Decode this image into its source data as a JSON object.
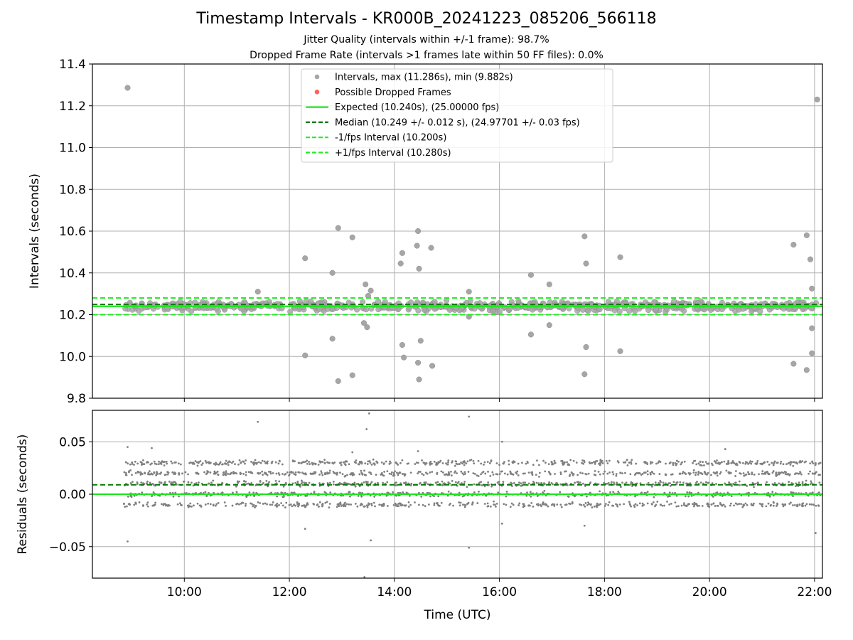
{
  "titles": {
    "main": "Timestamp Intervals - KR000B_20241223_085206_566118",
    "jitter": "Jitter Quality (intervals within +/-1 frame): 98.7%",
    "dropped": "Dropped Frame Rate (intervals >1 frames late within 50 FF files): 0.0%"
  },
  "colors": {
    "points": "#808080",
    "dropped": "#ff0000",
    "expected": "#1de51d",
    "median": "#007b00",
    "interval_bound": "#22ee22",
    "grid": "#b0b0b0"
  },
  "legend": {
    "location": "top-center",
    "entries": [
      {
        "label": "Intervals, max (11.286s), min (9.882s)",
        "style": "marker",
        "color": "#a6a6a6"
      },
      {
        "label": "Possible Dropped Frames",
        "style": "marker",
        "color": "#ff6060"
      },
      {
        "label": "Expected (10.240s), (25.00000 fps)",
        "style": "solid",
        "color": "#1de51d"
      },
      {
        "label": "Median (10.249 +/- 0.012 s), (24.97701 +/- 0.03 fps)",
        "style": "dashed",
        "color": "#007b00"
      },
      {
        "label": "-1/fps Interval (10.200s)",
        "style": "dashed",
        "color": "#22ee22"
      },
      {
        "label": "+1/fps Interval (10.280s)",
        "style": "dashed",
        "color": "#22ee22"
      }
    ]
  },
  "chart_data": [
    {
      "type": "scatter",
      "title": "Timestamp Intervals - KR000B_20241223_085206_566118",
      "xlabel": "",
      "ylabel": "Intervals (seconds)",
      "xlim": [
        8.25,
        22.15
      ],
      "ylim": [
        9.8,
        11.4
      ],
      "yticks": [
        9.8,
        10.0,
        10.2,
        10.4,
        10.6,
        10.8,
        11.0,
        11.2,
        11.4
      ],
      "ytick_labels": [
        "9.8",
        "10.0",
        "10.2",
        "10.4",
        "10.6",
        "10.8",
        "11.0",
        "11.2",
        "11.4"
      ],
      "xticks": [
        10,
        12,
        14,
        16,
        18,
        20,
        22
      ],
      "grid": true,
      "lines": [
        {
          "name": "Expected",
          "y": 10.24,
          "style": "solid"
        },
        {
          "name": "Median",
          "y": 10.249,
          "style": "dashed"
        },
        {
          "name": "-1/fps Interval",
          "y": 10.2,
          "style": "dashed"
        },
        {
          "name": "+1/fps Interval",
          "y": 10.28,
          "style": "dashed"
        }
      ],
      "band": {
        "x_range": [
          8.85,
          22.1
        ],
        "y_range": [
          10.2,
          10.28
        ]
      },
      "outliers": [
        [
          8.92,
          11.286
        ],
        [
          22.05,
          11.23
        ],
        [
          12.3,
          10.47
        ],
        [
          12.3,
          10.005
        ],
        [
          12.82,
          10.4
        ],
        [
          12.82,
          10.085
        ],
        [
          12.93,
          10.615
        ],
        [
          12.93,
          9.882
        ],
        [
          13.2,
          10.57
        ],
        [
          13.2,
          9.91
        ],
        [
          13.42,
          10.16
        ],
        [
          13.45,
          10.345
        ],
        [
          13.48,
          10.14
        ],
        [
          13.5,
          10.29
        ],
        [
          13.55,
          10.315
        ],
        [
          14.12,
          10.445
        ],
        [
          14.15,
          10.495
        ],
        [
          14.15,
          10.055
        ],
        [
          14.18,
          9.995
        ],
        [
          14.43,
          10.53
        ],
        [
          14.45,
          10.6
        ],
        [
          14.45,
          9.97
        ],
        [
          14.47,
          10.42
        ],
        [
          14.47,
          9.89
        ],
        [
          14.5,
          10.075
        ],
        [
          14.7,
          10.52
        ],
        [
          14.72,
          9.955
        ],
        [
          15.42,
          10.31
        ],
        [
          15.42,
          10.19
        ],
        [
          16.6,
          10.39
        ],
        [
          16.6,
          10.105
        ],
        [
          16.95,
          10.345
        ],
        [
          16.95,
          10.15
        ],
        [
          17.62,
          10.575
        ],
        [
          17.62,
          9.915
        ],
        [
          17.65,
          10.445
        ],
        [
          17.65,
          10.045
        ],
        [
          18.3,
          10.475
        ],
        [
          18.3,
          10.025
        ],
        [
          11.4,
          10.31
        ],
        [
          21.6,
          10.535
        ],
        [
          21.6,
          9.965
        ],
        [
          21.85,
          10.58
        ],
        [
          21.85,
          9.935
        ],
        [
          21.92,
          10.465
        ],
        [
          21.95,
          10.325
        ],
        [
          21.95,
          10.135
        ],
        [
          21.95,
          10.015
        ]
      ]
    },
    {
      "type": "scatter",
      "title": "",
      "xlabel": "Time (UTC)",
      "ylabel": "Residuals (seconds)",
      "xlim": [
        8.25,
        22.15
      ],
      "ylim": [
        -0.08,
        0.08
      ],
      "yticks": [
        -0.05,
        0.0,
        0.05
      ],
      "ytick_labels": [
        "−0.05",
        "0.00",
        "0.05"
      ],
      "xticks": [
        10,
        12,
        14,
        16,
        18,
        20,
        22
      ],
      "xtick_labels": [
        "10:00",
        "12:00",
        "14:00",
        "16:00",
        "18:00",
        "20:00",
        "22:00"
      ],
      "grid": true,
      "lines": [
        {
          "name": "Expected",
          "y": 0.0,
          "style": "solid"
        },
        {
          "name": "Median",
          "y": 0.009,
          "style": "dashed"
        }
      ],
      "clusters": [
        -0.01,
        0.0,
        0.01,
        0.02,
        0.03
      ],
      "outliers": [
        [
          8.92,
          0.045
        ],
        [
          8.92,
          -0.045
        ],
        [
          9.38,
          0.044
        ],
        [
          11.4,
          0.069
        ],
        [
          13.47,
          0.062
        ],
        [
          13.52,
          0.077
        ],
        [
          15.42,
          0.074
        ],
        [
          16.05,
          0.05
        ],
        [
          13.43,
          -0.079
        ],
        [
          13.55,
          -0.044
        ],
        [
          15.42,
          -0.051
        ],
        [
          16.05,
          -0.028
        ],
        [
          22.02,
          -0.037
        ],
        [
          12.3,
          -0.033
        ],
        [
          13.2,
          0.04
        ],
        [
          14.45,
          0.041
        ],
        [
          17.62,
          -0.03
        ],
        [
          20.3,
          0.043
        ]
      ]
    }
  ]
}
